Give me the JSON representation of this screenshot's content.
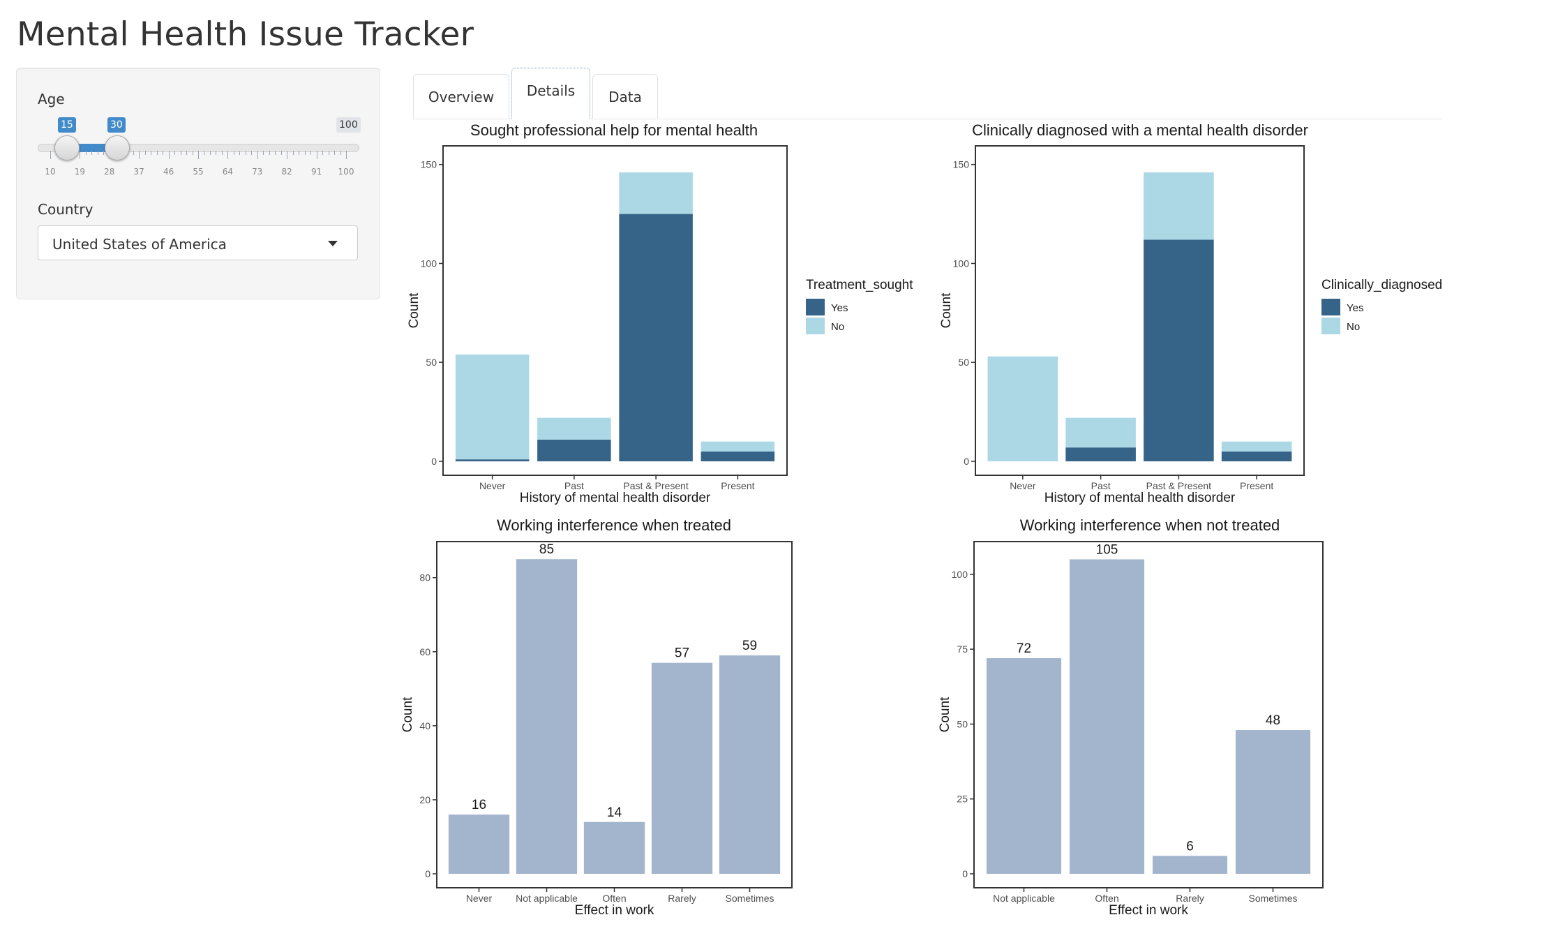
{
  "app": {
    "title": "Mental Health Issue Tracker"
  },
  "sidebar": {
    "age_label": "Age",
    "slider": {
      "min_label": "15",
      "max_label": "30",
      "range_max_label": "100",
      "lower_value": 15,
      "upper_value": 30,
      "range_min": 10,
      "range_max": 100,
      "tick_labels": [
        "10",
        "19",
        "28",
        "37",
        "46",
        "55",
        "64",
        "73",
        "82",
        "91",
        "100"
      ]
    },
    "country_label": "Country",
    "country_value": "United States of America"
  },
  "tabs": [
    {
      "label": "Overview"
    },
    {
      "label": "Details"
    },
    {
      "label": "Data"
    }
  ],
  "active_tab": "Details",
  "colors": {
    "dark_bar": "#366488",
    "light_bar": "#acd8e6",
    "grey_blue_bar": "#a3b5cd",
    "slider_accent": "#428bca"
  },
  "chart_data": [
    {
      "type": "bar",
      "stacked": true,
      "title": "Sought professional help for mental health",
      "xlabel": "History of mental health disorder",
      "ylabel": "Count",
      "categories": [
        "Never",
        "Past",
        "Past & Present",
        "Present"
      ],
      "legend": {
        "title": "Treatment_sought",
        "position": "right"
      },
      "series": [
        {
          "name": "Yes",
          "values": [
            1,
            11,
            125,
            5
          ]
        },
        {
          "name": "No",
          "values": [
            53,
            11,
            21,
            5
          ]
        }
      ],
      "ylim": [
        0,
        158
      ],
      "yticks": [
        0,
        50,
        100,
        150
      ],
      "grid": false
    },
    {
      "type": "bar",
      "stacked": true,
      "title": "Clinically diagnosed with a mental health disorder",
      "xlabel": "History of mental health disorder",
      "ylabel": "Count",
      "categories": [
        "Never",
        "Past",
        "Past & Present",
        "Present"
      ],
      "legend": {
        "title": "Clinically_diagnosed",
        "position": "right"
      },
      "series": [
        {
          "name": "Yes",
          "values": [
            0,
            7,
            112,
            5
          ]
        },
        {
          "name": "No",
          "values": [
            53,
            15,
            34,
            5
          ]
        }
      ],
      "ylim": [
        0,
        158
      ],
      "yticks": [
        0,
        50,
        100,
        150
      ],
      "grid": false
    },
    {
      "type": "bar",
      "title": "Working interference when treated",
      "xlabel": "Effect in work",
      "ylabel": "Count",
      "categories": [
        "Never",
        "Not applicable",
        "Often",
        "Rarely",
        "Sometimes"
      ],
      "values": [
        16,
        85,
        14,
        57,
        59
      ],
      "ylim": [
        0,
        89
      ],
      "yticks": [
        0,
        20,
        40,
        60,
        80
      ],
      "grid": false
    },
    {
      "type": "bar",
      "title": "Working interference when not treated",
      "xlabel": "Effect in work",
      "ylabel": "Count",
      "categories": [
        "Not applicable",
        "Often",
        "Rarely",
        "Sometimes"
      ],
      "values": [
        72,
        105,
        6,
        48
      ],
      "ylim": [
        0,
        110
      ],
      "yticks": [
        0,
        25,
        50,
        75,
        100
      ],
      "grid": false
    }
  ]
}
